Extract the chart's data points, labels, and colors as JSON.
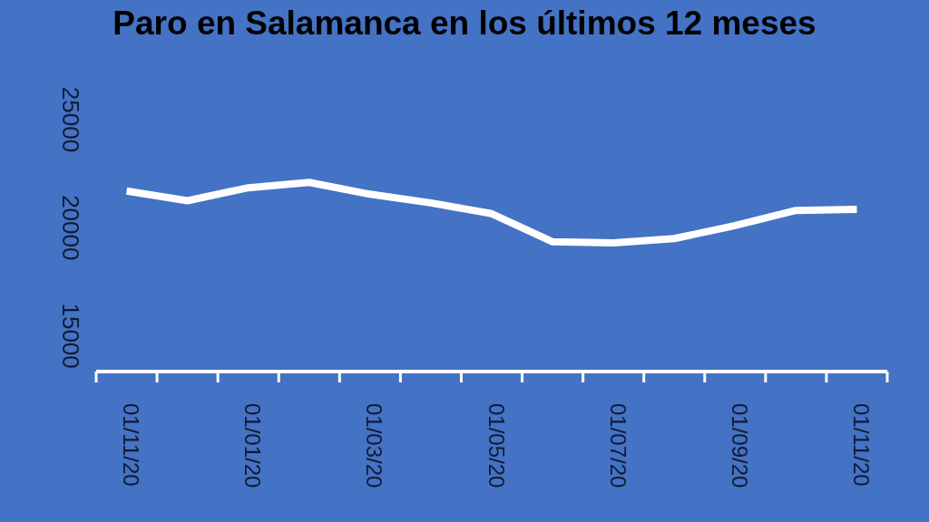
{
  "chart_data": {
    "type": "line",
    "title": "Paro en Salamanca en los últimos 12 meses",
    "categories": [
      "01/11/20",
      null,
      "01/01/20",
      null,
      "01/03/20",
      null,
      "01/05/20",
      null,
      "01/07/20",
      null,
      "01/09/20",
      null,
      "01/11/20"
    ],
    "series": [
      {
        "color": "#ffffff",
        "values": [
          21700,
          21250,
          21850,
          22100,
          21550,
          21150,
          20650,
          19350,
          19300,
          19500,
          20100,
          20800,
          20850
        ]
      }
    ],
    "ylim": [
      13350,
      25000
    ],
    "yticks": [
      15000,
      20000,
      25000
    ]
  }
}
